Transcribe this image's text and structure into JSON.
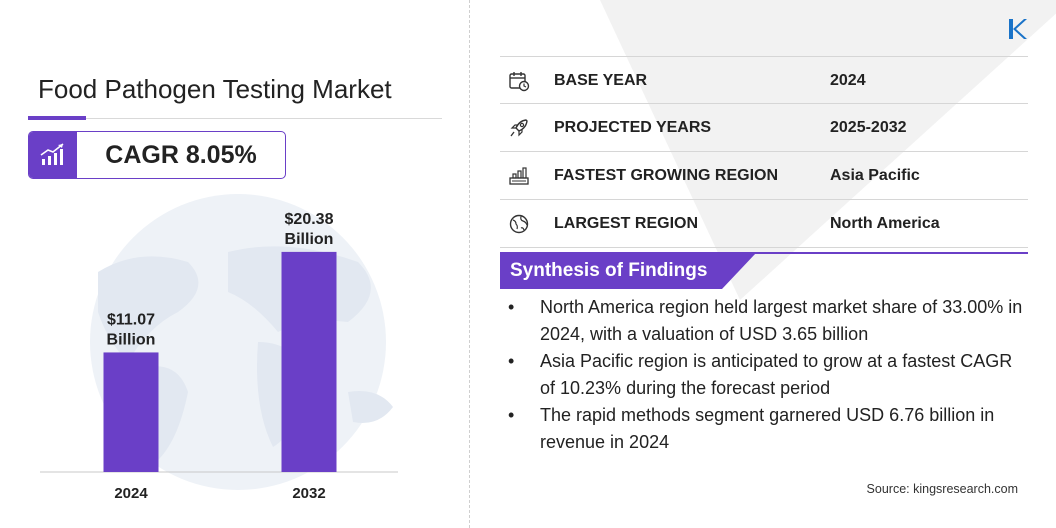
{
  "title": "Food Pathogen Testing Market",
  "cagr": "CAGR 8.05%",
  "colors": {
    "accent": "#6a3fc7",
    "bar": "#6a3fc7",
    "globe": "#e9eef5"
  },
  "chart_data": {
    "type": "bar",
    "categories": [
      "2024",
      "2032"
    ],
    "values": [
      11.07,
      20.38
    ],
    "value_labels": [
      [
        "$11.07",
        "Billion"
      ],
      [
        "$20.38",
        "Billion"
      ]
    ],
    "title": "",
    "xlabel": "",
    "ylabel": "",
    "grid": false,
    "legend": "none"
  },
  "info": [
    {
      "icon": "calendar-icon",
      "label": "BASE YEAR",
      "value": "2024"
    },
    {
      "icon": "rocket-icon",
      "label": "PROJECTED YEARS",
      "value": "2025-2032"
    },
    {
      "icon": "growth-region-icon",
      "label": "FASTEST GROWING REGION",
      "value": "Asia Pacific"
    },
    {
      "icon": "globe-icon",
      "label": "LARGEST REGION",
      "value": "North America"
    }
  ],
  "synthesis": {
    "title": "Synthesis of Findings",
    "bullet": "•",
    "items": [
      "North America region held largest market share of 33.00% in 2024, with a valuation of USD 3.65 billion",
      "Asia Pacific region is anticipated to grow at a fastest CAGR of 10.23% during the forecast period",
      "The rapid methods segment garnered USD 6.76 billion in revenue in 2024"
    ]
  },
  "source": "Source:  kingsresearch.com"
}
